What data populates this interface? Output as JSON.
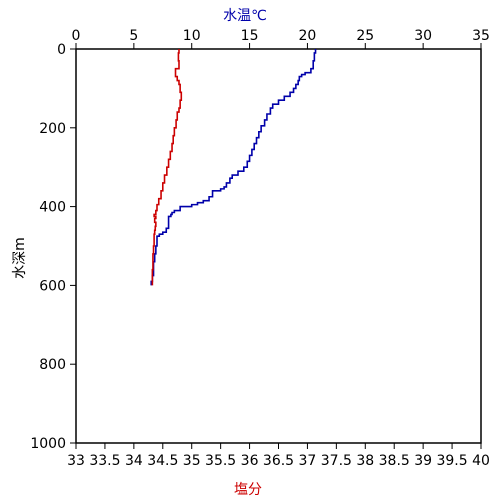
{
  "chart_data": {
    "type": "line",
    "title": "",
    "top_axis": {
      "label": "水温℃",
      "label_color": "#0000aa",
      "min": 0,
      "max": 35,
      "ticks": [
        0,
        5,
        10,
        15,
        20,
        25,
        30,
        35
      ],
      "tick_labels": [
        "0",
        "5",
        "10",
        "15",
        "20",
        "25",
        "30",
        "35"
      ]
    },
    "bottom_axis": {
      "label": "塩分",
      "label_color": "#cc0000",
      "min": 33,
      "max": 40,
      "ticks": [
        33,
        33.5,
        34,
        34.5,
        35,
        35.5,
        36,
        36.5,
        37,
        37.5,
        38,
        38.5,
        39,
        39.5,
        40
      ],
      "tick_labels": [
        "33",
        "33.5",
        "34",
        "34.5",
        "35",
        "35.5",
        "36",
        "36.5",
        "37",
        "37.5",
        "38",
        "38.5",
        "39",
        "39.5",
        "40"
      ]
    },
    "y_axis": {
      "label": "水深m",
      "min": 0,
      "max": 1000,
      "inverted": true,
      "ticks": [
        0,
        200,
        400,
        600,
        800,
        1000
      ],
      "tick_labels": [
        "0",
        "200",
        "400",
        "600",
        "800",
        "1000"
      ]
    },
    "grid": false,
    "series": [
      {
        "key": "temperature",
        "axis": "top",
        "color": "#0000aa",
        "points": [
          [
            20.7,
            0
          ],
          [
            20.7,
            10
          ],
          [
            20.6,
            30
          ],
          [
            20.5,
            50
          ],
          [
            20.3,
            60
          ],
          [
            19.8,
            65
          ],
          [
            19.5,
            70
          ],
          [
            19.3,
            80
          ],
          [
            19.2,
            90
          ],
          [
            19.0,
            100
          ],
          [
            18.8,
            110
          ],
          [
            18.5,
            120
          ],
          [
            18.0,
            130
          ],
          [
            17.5,
            140
          ],
          [
            17.0,
            150
          ],
          [
            16.8,
            165
          ],
          [
            16.5,
            180
          ],
          [
            16.3,
            195
          ],
          [
            16.0,
            210
          ],
          [
            15.8,
            225
          ],
          [
            15.6,
            240
          ],
          [
            15.4,
            255
          ],
          [
            15.2,
            270
          ],
          [
            15.0,
            285
          ],
          [
            14.8,
            300
          ],
          [
            14.5,
            310
          ],
          [
            14.0,
            320
          ],
          [
            13.5,
            328
          ],
          [
            13.3,
            340
          ],
          [
            13.0,
            350
          ],
          [
            12.8,
            355
          ],
          [
            12.5,
            360
          ],
          [
            11.8,
            375
          ],
          [
            11.5,
            385
          ],
          [
            11.0,
            390
          ],
          [
            10.5,
            395
          ],
          [
            10.0,
            400
          ],
          [
            9.0,
            410
          ],
          [
            8.5,
            415
          ],
          [
            8.3,
            420
          ],
          [
            8.2,
            425
          ],
          [
            8.0,
            430
          ],
          [
            8.0,
            440
          ],
          [
            8.0,
            455
          ],
          [
            7.8,
            465
          ],
          [
            7.5,
            470
          ],
          [
            7.2,
            475
          ],
          [
            7.0,
            480
          ],
          [
            7.0,
            500
          ],
          [
            6.9,
            520
          ],
          [
            6.8,
            540
          ],
          [
            6.7,
            560
          ],
          [
            6.7,
            575
          ],
          [
            6.6,
            590
          ],
          [
            6.5,
            600
          ]
        ]
      },
      {
        "key": "salinity",
        "axis": "bottom",
        "color": "#cc0000",
        "points": [
          [
            34.78,
            0
          ],
          [
            34.78,
            10
          ],
          [
            34.77,
            30
          ],
          [
            34.78,
            50
          ],
          [
            34.72,
            60
          ],
          [
            34.72,
            70
          ],
          [
            34.75,
            80
          ],
          [
            34.78,
            90
          ],
          [
            34.8,
            100
          ],
          [
            34.8,
            110
          ],
          [
            34.82,
            130
          ],
          [
            34.8,
            150
          ],
          [
            34.78,
            160
          ],
          [
            34.75,
            180
          ],
          [
            34.73,
            200
          ],
          [
            34.7,
            220
          ],
          [
            34.68,
            240
          ],
          [
            34.66,
            260
          ],
          [
            34.63,
            280
          ],
          [
            34.6,
            300
          ],
          [
            34.57,
            320
          ],
          [
            34.53,
            340
          ],
          [
            34.5,
            360
          ],
          [
            34.47,
            380
          ],
          [
            34.43,
            395
          ],
          [
            34.4,
            410
          ],
          [
            34.38,
            420
          ],
          [
            34.35,
            425
          ],
          [
            34.38,
            430
          ],
          [
            34.36,
            440
          ],
          [
            34.38,
            450
          ],
          [
            34.37,
            460
          ],
          [
            34.36,
            470
          ],
          [
            34.35,
            480
          ],
          [
            34.35,
            500
          ],
          [
            34.34,
            520
          ],
          [
            34.33,
            540
          ],
          [
            34.33,
            560
          ],
          [
            34.32,
            580
          ],
          [
            34.32,
            600
          ]
        ]
      }
    ]
  }
}
